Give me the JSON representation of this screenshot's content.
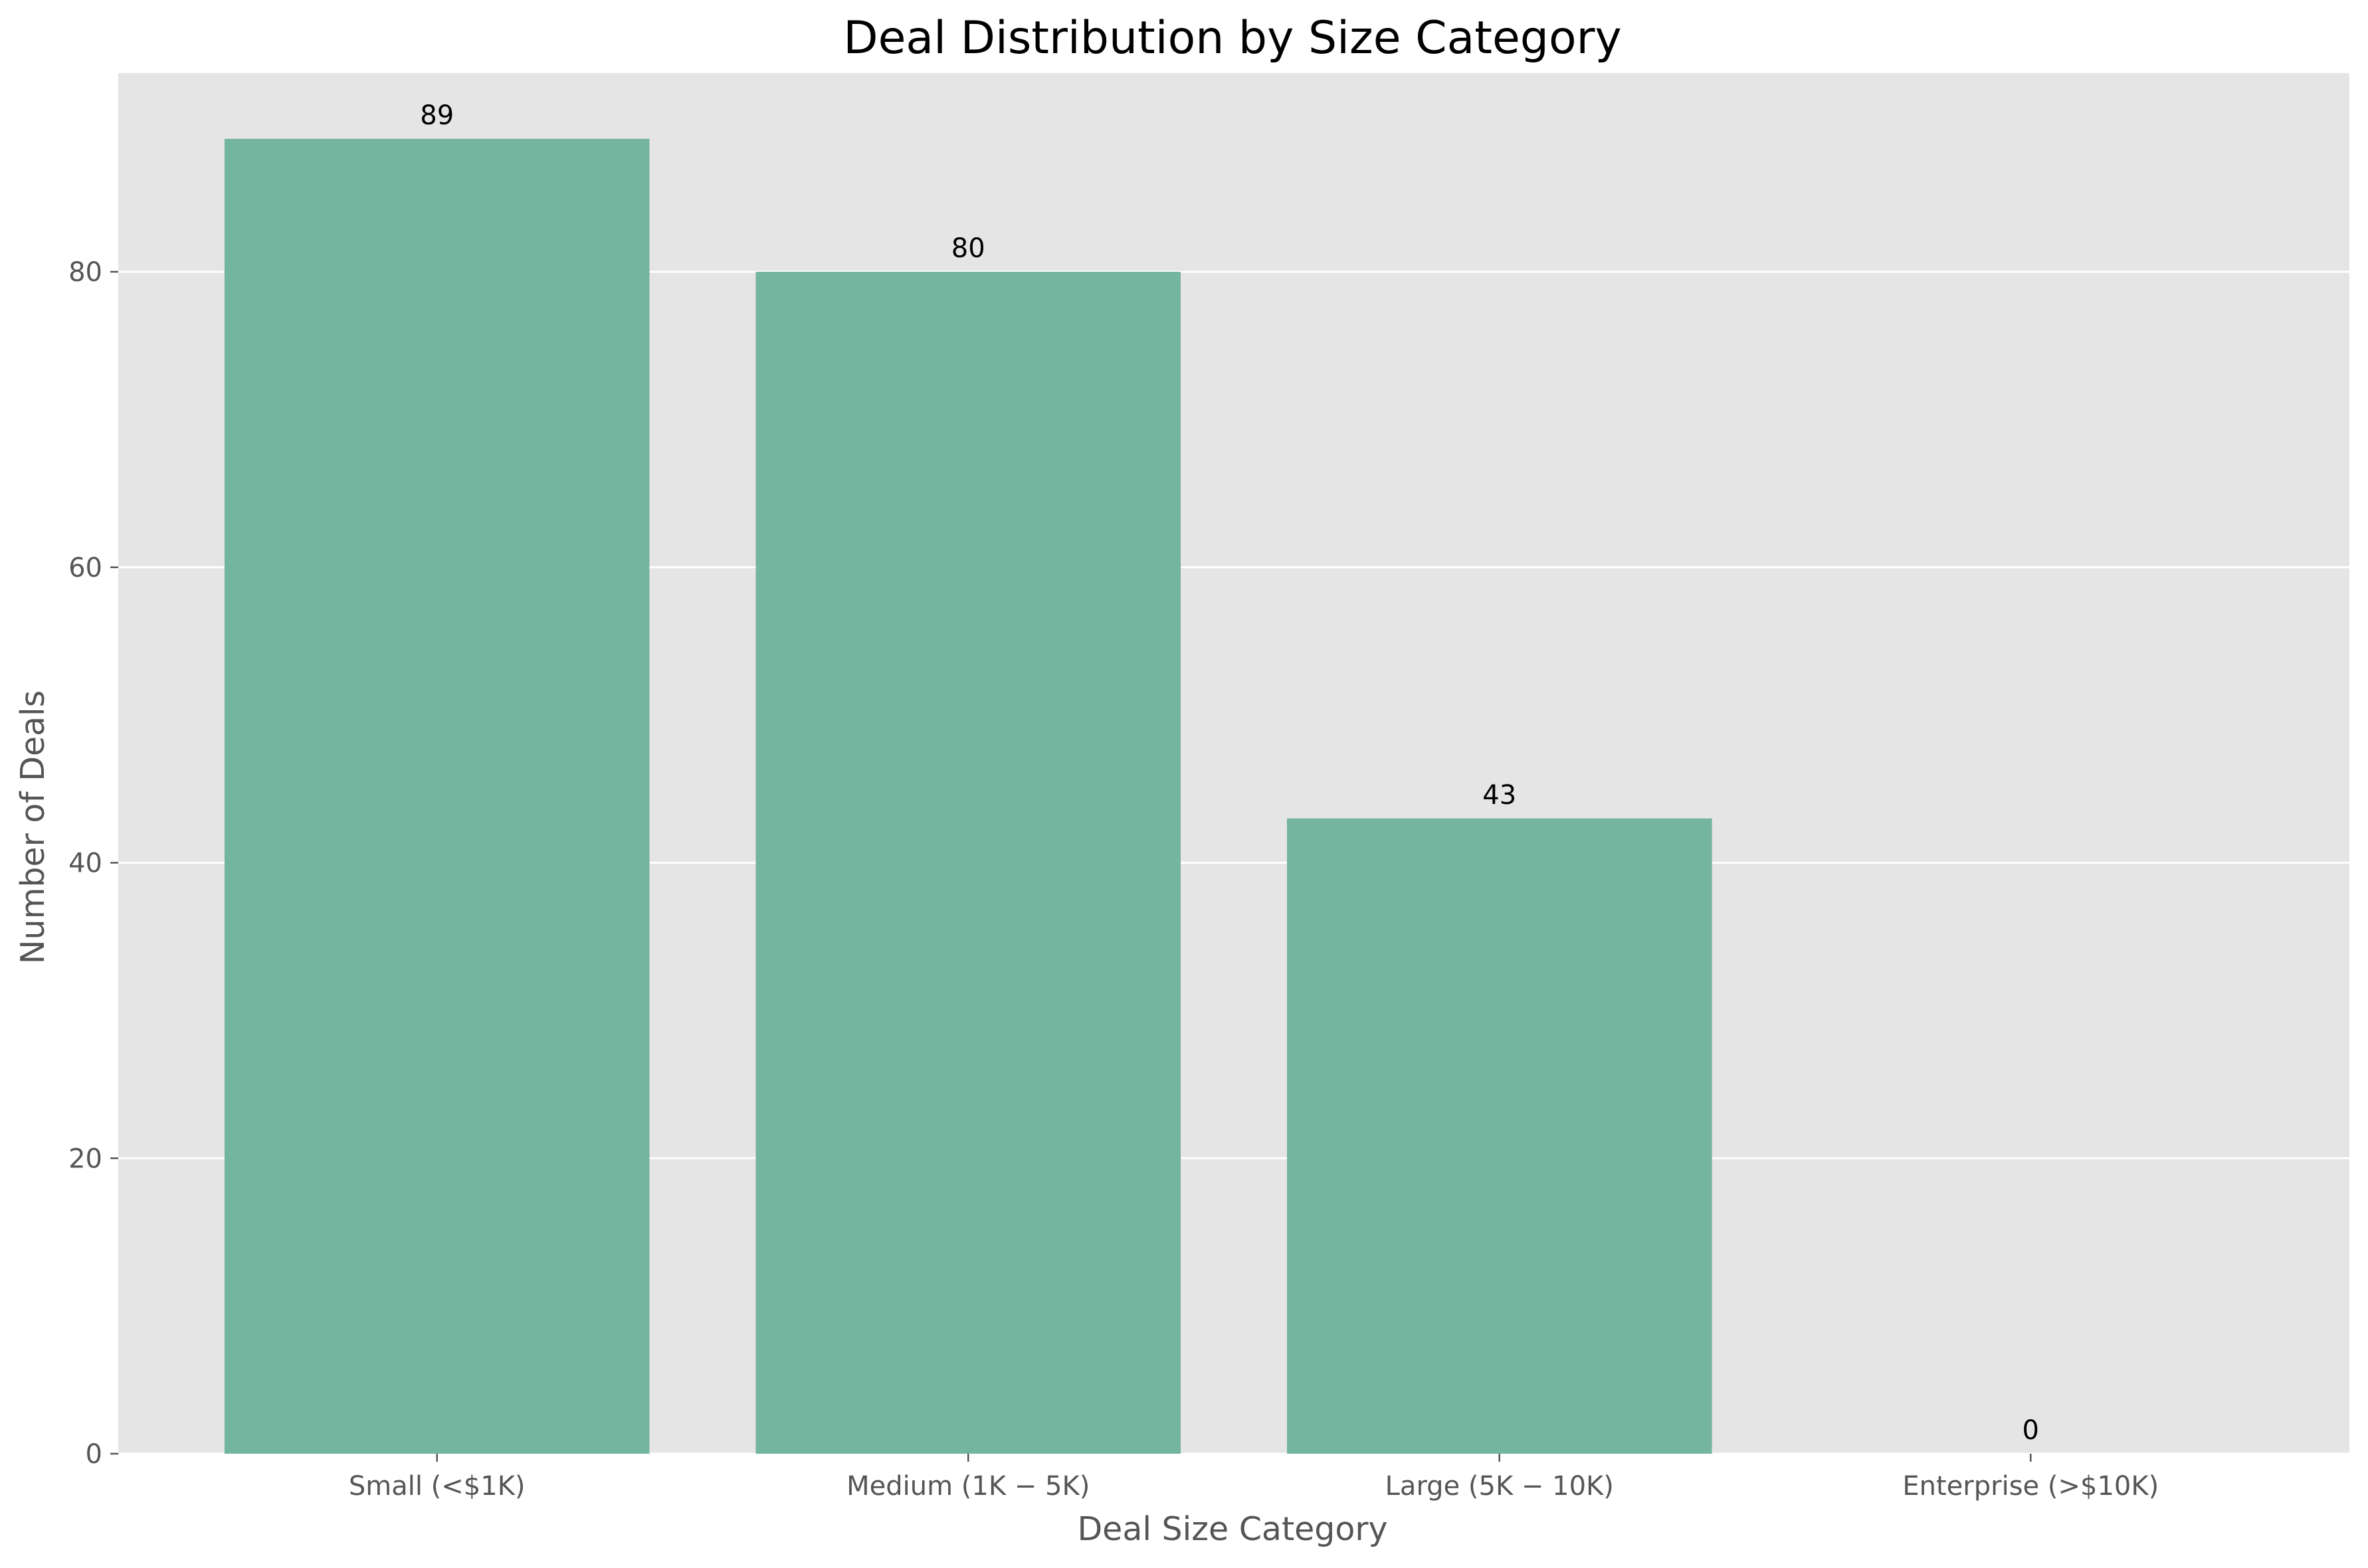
{
  "colors": {
    "plot_background": "#e5e5e5",
    "grid": "#ffffff",
    "bar": "#74b5a0",
    "axis_text": "#555555",
    "title_text": "#000000"
  },
  "chart_data": {
    "type": "bar",
    "title": "Deal Distribution by Size Category",
    "xlabel": "Deal Size Category",
    "ylabel": "Number of Deals",
    "categories": [
      "Small (<$1K)",
      "Medium ($1K-$5K)",
      "Large ($5K-$10K)",
      "Enterprise (>$10K)"
    ],
    "category_labels": [
      "Small (<$1K)",
      "Medium (1K − 5K)",
      "Large (5K − 10K)",
      "Enterprise (>$10K)"
    ],
    "values": [
      89,
      80,
      43,
      0
    ],
    "data_labels": [
      "89",
      "80",
      "43",
      "0"
    ],
    "yticks": [
      0,
      20,
      40,
      60,
      80
    ],
    "ylim": [
      0,
      93.45
    ],
    "grid": true,
    "legend": "none"
  }
}
